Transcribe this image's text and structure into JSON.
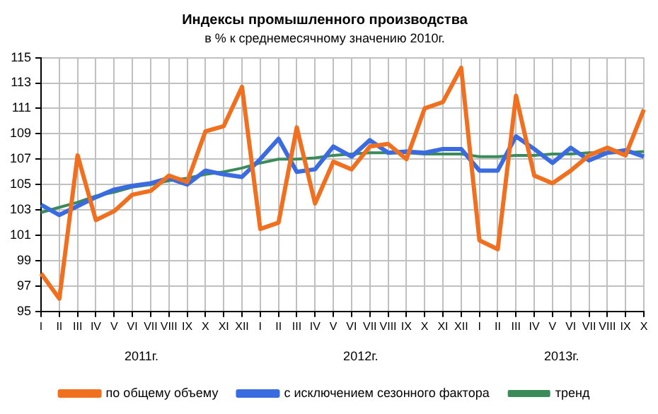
{
  "chart_data": {
    "type": "line",
    "title": "Индексы промышленного производства",
    "subtitle": "в % к среднемесячному значению 2010г.",
    "categories": [
      "I",
      "II",
      "III",
      "IV",
      "V",
      "VI",
      "VII",
      "VIII",
      "IX",
      "X",
      "XI",
      "XII",
      "I",
      "II",
      "III",
      "IV",
      "V",
      "VI",
      "VII",
      "VIII",
      "IX",
      "X",
      "XI",
      "XII",
      "I",
      "II",
      "III",
      "IV",
      "V",
      "VI",
      "VII",
      "VIII",
      "IX",
      "X"
    ],
    "series": [
      {
        "name": "по общему объему",
        "color": "#f07020",
        "values": [
          98,
          96,
          107.3,
          102.2,
          102.9,
          104.2,
          104.5,
          105.7,
          105.2,
          109.2,
          109.6,
          112.7,
          101.5,
          102,
          109.5,
          103.5,
          106.8,
          106.2,
          108,
          108.2,
          107,
          111,
          111.5,
          114.2,
          100.6,
          99.9,
          112,
          105.7,
          105.1,
          106.1,
          107.3,
          107.9,
          107.3,
          110.9
        ]
      },
      {
        "name": "с исключением сезонного фактора",
        "color": "#3a6be0",
        "values": [
          103.4,
          102.6,
          103.3,
          104,
          104.6,
          104.9,
          105.1,
          105.5,
          105,
          106.1,
          105.8,
          105.6,
          107,
          108.6,
          106,
          106.2,
          108,
          107.2,
          108.5,
          107.5,
          107.6,
          107.5,
          107.8,
          107.8,
          106.1,
          106.1,
          108.8,
          107.8,
          106.7,
          107.9,
          106.9,
          107.5,
          107.7,
          107.2
        ]
      },
      {
        "name": "тренд",
        "color": "#3a8a5a",
        "values": [
          102.8,
          103.2,
          103.6,
          104.1,
          104.4,
          104.8,
          105,
          105.3,
          105.5,
          105.8,
          106,
          106.3,
          106.7,
          107,
          107,
          107.1,
          107.3,
          107.4,
          107.5,
          107.5,
          107.5,
          107.4,
          107.4,
          107.4,
          107.2,
          107.2,
          107.3,
          107.3,
          107.4,
          107.4,
          107.5,
          107.5,
          107.5,
          107.6
        ]
      }
    ],
    "annotations": [
      "2011г.",
      "2012г.",
      "2013г."
    ],
    "ylim": [
      95,
      115
    ],
    "yticks": [
      95,
      97,
      99,
      101,
      103,
      105,
      107,
      109,
      111,
      113,
      115
    ],
    "grid": true,
    "legend": "bottom",
    "marker": "none",
    "line_style": "solid"
  }
}
